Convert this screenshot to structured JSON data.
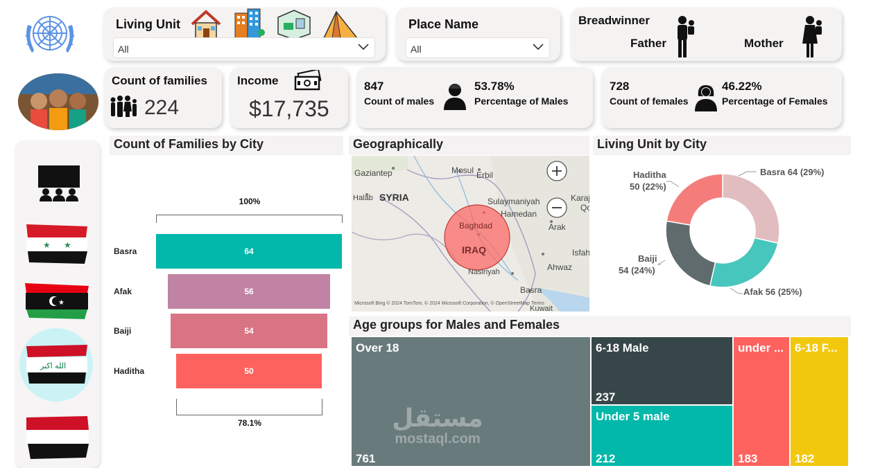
{
  "filters": {
    "living_unit": {
      "title": "Living Unit",
      "selected": "All"
    },
    "place_name": {
      "title": "Place Name",
      "selected": "All"
    },
    "breadwinner": {
      "title": "Breadwinner",
      "father_label": "Father",
      "mother_label": "Mother"
    }
  },
  "kpis": {
    "families": {
      "label": "Count of families",
      "value": "224"
    },
    "income": {
      "label": "Income",
      "value": "$17,735"
    },
    "males": {
      "count": "847",
      "count_label": "Count of males",
      "pct": "53.78%",
      "pct_label": "Percentage of Males"
    },
    "females": {
      "count": "728",
      "count_label": "Count of females",
      "pct": "46.22%",
      "pct_label": "Percentage of Females"
    }
  },
  "funnel": {
    "title": "Count of Families by City",
    "top_pct": "100%",
    "bottom_pct": "78.1%"
  },
  "map": {
    "title": "Geographically",
    "labels": [
      "Gaziantep",
      "Mosul",
      "Erbil",
      "SYRIA",
      "Halab",
      "Sulaymaniyah",
      "Hamedan",
      "Baghdad",
      "IRAQ",
      "Arak",
      "Karaj",
      "Ahwaz",
      "Isfah",
      "Nasiriyah",
      "Basra",
      "Kuwait",
      "Qo"
    ],
    "attribution": "Microsoft Bing © 2024 TomTom, © 2024 Microsoft Corporation, © OpenStreetMap  Terms"
  },
  "donut": {
    "title": "Living Unit by City",
    "labels": {
      "basra": "Basra 64 (29%)",
      "afak": "Afak 56 (25%)",
      "baiji_name": "Baiji",
      "baiji_val": "54 (24%)",
      "haditha_name": "Haditha",
      "haditha_val": "50 (22%)"
    }
  },
  "treemap": {
    "title": "Age groups for Males and Females",
    "cells": {
      "over18": {
        "label": "Over 18",
        "value": "761"
      },
      "m618": {
        "label": "6-18 Male",
        "value": "237"
      },
      "u5m": {
        "label": "Under 5 male",
        "value": "212"
      },
      "under": {
        "label": "under ...",
        "value": "183"
      },
      "f618": {
        "label": "6-18 F...",
        "value": "182"
      }
    }
  },
  "watermark": {
    "arabic": "مستقل",
    "latin": "mostaql.com"
  },
  "colors": {
    "teal": "#01b8aa",
    "mauve": "#c183a4",
    "rose": "#d97485",
    "coral": "#fd625e",
    "dark_slate": "#374649",
    "grey_slate": "#5f6b6d",
    "pink_light": "#e2bdbf",
    "yellow": "#f2c80f",
    "treemap_grey": "#697a7c"
  },
  "chart_data": [
    {
      "type": "bar",
      "title": "Count of Families by City",
      "categories": [
        "Basra",
        "Afak",
        "Baiji",
        "Haditha"
      ],
      "values": [
        64,
        56,
        54,
        50
      ]
    },
    {
      "type": "pie",
      "title": "Living Unit by City",
      "categories": [
        "Basra",
        "Afak",
        "Baiji",
        "Haditha"
      ],
      "values": [
        64,
        56,
        54,
        50
      ],
      "percentages": [
        29,
        25,
        24,
        22
      ],
      "colors": [
        "#e2bdbf",
        "#47c6bd",
        "#5f6b6d",
        "#f47d7b"
      ]
    },
    {
      "type": "heatmap",
      "title": "Age groups for Males and Females",
      "categories": [
        "Over 18",
        "6-18 Male",
        "Under 5 male",
        "under ...",
        "6-18 F..."
      ],
      "values": [
        761,
        237,
        212,
        183,
        182
      ]
    }
  ]
}
